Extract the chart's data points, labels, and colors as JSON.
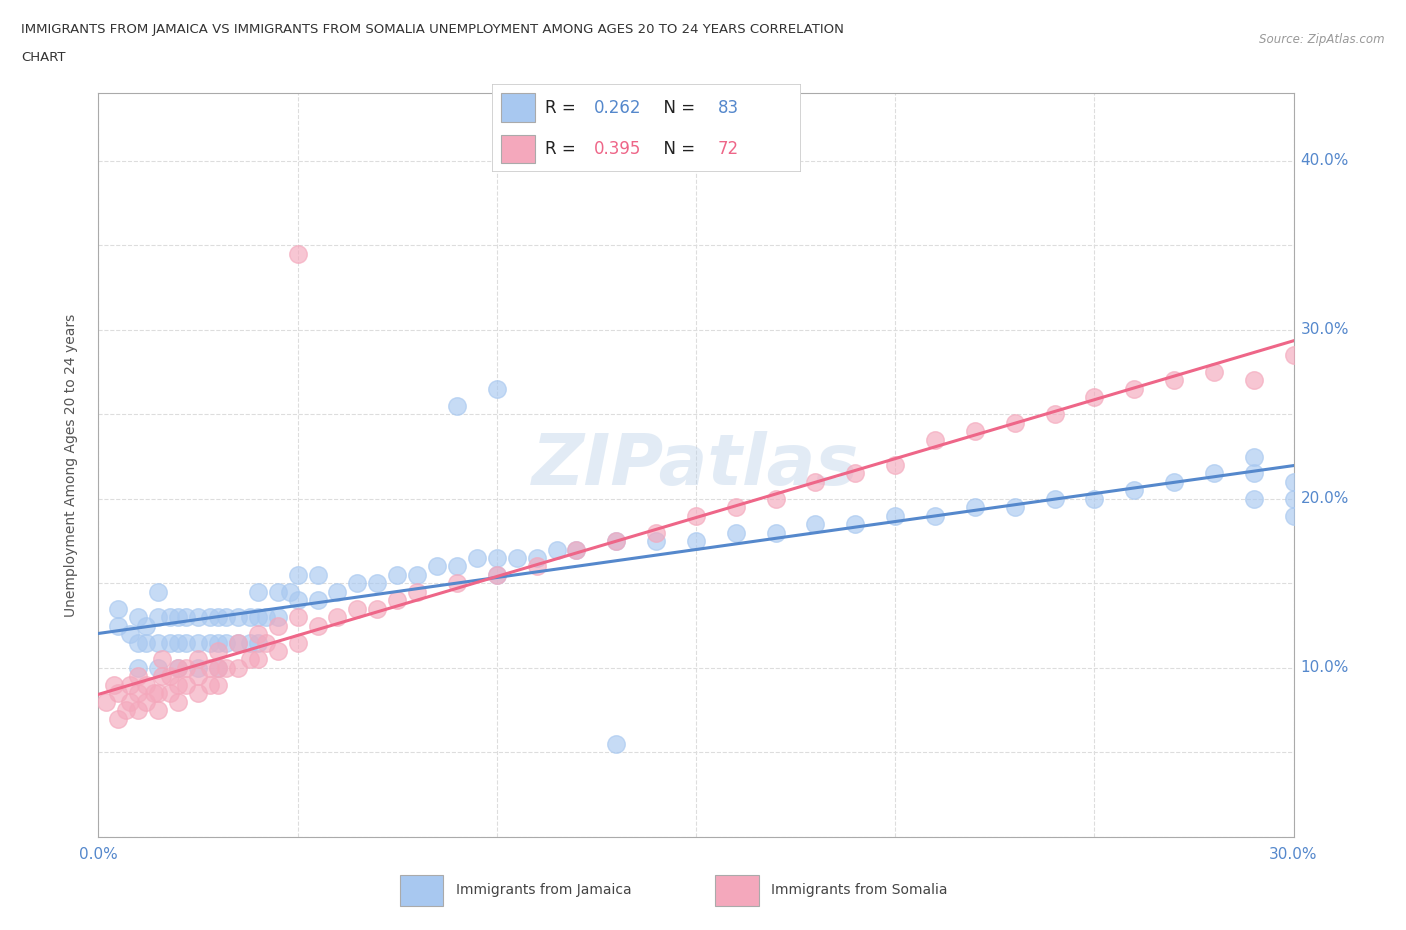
{
  "title_line1": "IMMIGRANTS FROM JAMAICA VS IMMIGRANTS FROM SOMALIA UNEMPLOYMENT AMONG AGES 20 TO 24 YEARS CORRELATION",
  "title_line2": "CHART",
  "source": "Source: ZipAtlas.com",
  "ylabel": "Unemployment Among Ages 20 to 24 years",
  "xlim": [
    0.0,
    0.3
  ],
  "ylim": [
    0.0,
    0.44
  ],
  "x_ticks": [
    0.0,
    0.05,
    0.1,
    0.15,
    0.2,
    0.25,
    0.3
  ],
  "y_ticks": [
    0.0,
    0.05,
    0.1,
    0.15,
    0.2,
    0.25,
    0.3,
    0.35,
    0.4
  ],
  "jamaica_color": "#a8c8f0",
  "somalia_color": "#f4a8bc",
  "jamaica_line_color": "#5588cc",
  "somalia_line_color": "#ee6688",
  "jamaica_R_color": "#5588cc",
  "somalia_R_color": "#ee6688",
  "R_jamaica": 0.262,
  "N_jamaica": 83,
  "R_somalia": 0.395,
  "N_somalia": 72,
  "watermark": "ZIPatlas",
  "tick_color": "#5588cc",
  "grid_color": "#dddddd",
  "spine_color": "#aaaaaa",
  "legend_label_jamaica": "Immigrants from Jamaica",
  "legend_label_somalia": "Immigrants from Somalia",
  "jamaica_x": [
    0.005,
    0.005,
    0.008,
    0.01,
    0.01,
    0.01,
    0.012,
    0.012,
    0.015,
    0.015,
    0.015,
    0.015,
    0.018,
    0.018,
    0.02,
    0.02,
    0.02,
    0.022,
    0.022,
    0.025,
    0.025,
    0.025,
    0.028,
    0.028,
    0.03,
    0.03,
    0.03,
    0.032,
    0.032,
    0.035,
    0.035,
    0.038,
    0.038,
    0.04,
    0.04,
    0.04,
    0.042,
    0.045,
    0.045,
    0.048,
    0.05,
    0.05,
    0.055,
    0.055,
    0.06,
    0.065,
    0.07,
    0.075,
    0.08,
    0.085,
    0.09,
    0.095,
    0.1,
    0.1,
    0.105,
    0.11,
    0.115,
    0.12,
    0.13,
    0.14,
    0.15,
    0.16,
    0.17,
    0.18,
    0.19,
    0.2,
    0.21,
    0.22,
    0.23,
    0.24,
    0.25,
    0.26,
    0.27,
    0.28,
    0.29,
    0.29,
    0.29,
    0.3,
    0.3,
    0.3,
    0.09,
    0.1,
    0.13
  ],
  "jamaica_y": [
    0.125,
    0.135,
    0.12,
    0.1,
    0.115,
    0.13,
    0.115,
    0.125,
    0.1,
    0.115,
    0.13,
    0.145,
    0.115,
    0.13,
    0.1,
    0.115,
    0.13,
    0.115,
    0.13,
    0.1,
    0.115,
    0.13,
    0.115,
    0.13,
    0.1,
    0.115,
    0.13,
    0.115,
    0.13,
    0.115,
    0.13,
    0.115,
    0.13,
    0.115,
    0.13,
    0.145,
    0.13,
    0.13,
    0.145,
    0.145,
    0.14,
    0.155,
    0.14,
    0.155,
    0.145,
    0.15,
    0.15,
    0.155,
    0.155,
    0.16,
    0.16,
    0.165,
    0.155,
    0.165,
    0.165,
    0.165,
    0.17,
    0.17,
    0.175,
    0.175,
    0.175,
    0.18,
    0.18,
    0.185,
    0.185,
    0.19,
    0.19,
    0.195,
    0.195,
    0.2,
    0.2,
    0.205,
    0.21,
    0.215,
    0.2,
    0.215,
    0.225,
    0.19,
    0.2,
    0.21,
    0.255,
    0.265,
    0.055
  ],
  "somalia_x": [
    0.002,
    0.004,
    0.005,
    0.005,
    0.007,
    0.008,
    0.008,
    0.01,
    0.01,
    0.01,
    0.012,
    0.012,
    0.014,
    0.015,
    0.015,
    0.016,
    0.016,
    0.018,
    0.018,
    0.02,
    0.02,
    0.02,
    0.022,
    0.022,
    0.025,
    0.025,
    0.025,
    0.028,
    0.028,
    0.03,
    0.03,
    0.03,
    0.032,
    0.035,
    0.035,
    0.038,
    0.04,
    0.04,
    0.042,
    0.045,
    0.045,
    0.05,
    0.05,
    0.055,
    0.06,
    0.065,
    0.07,
    0.075,
    0.08,
    0.09,
    0.1,
    0.11,
    0.12,
    0.13,
    0.14,
    0.15,
    0.16,
    0.17,
    0.18,
    0.19,
    0.2,
    0.21,
    0.22,
    0.23,
    0.24,
    0.25,
    0.26,
    0.27,
    0.28,
    0.29,
    0.3,
    0.05
  ],
  "somalia_y": [
    0.08,
    0.09,
    0.07,
    0.085,
    0.075,
    0.08,
    0.09,
    0.075,
    0.085,
    0.095,
    0.08,
    0.09,
    0.085,
    0.075,
    0.085,
    0.095,
    0.105,
    0.085,
    0.095,
    0.08,
    0.09,
    0.1,
    0.09,
    0.1,
    0.085,
    0.095,
    0.105,
    0.09,
    0.1,
    0.09,
    0.1,
    0.11,
    0.1,
    0.1,
    0.115,
    0.105,
    0.105,
    0.12,
    0.115,
    0.11,
    0.125,
    0.115,
    0.13,
    0.125,
    0.13,
    0.135,
    0.135,
    0.14,
    0.145,
    0.15,
    0.155,
    0.16,
    0.17,
    0.175,
    0.18,
    0.19,
    0.195,
    0.2,
    0.21,
    0.215,
    0.22,
    0.235,
    0.24,
    0.245,
    0.25,
    0.26,
    0.265,
    0.27,
    0.275,
    0.27,
    0.285,
    0.345
  ]
}
